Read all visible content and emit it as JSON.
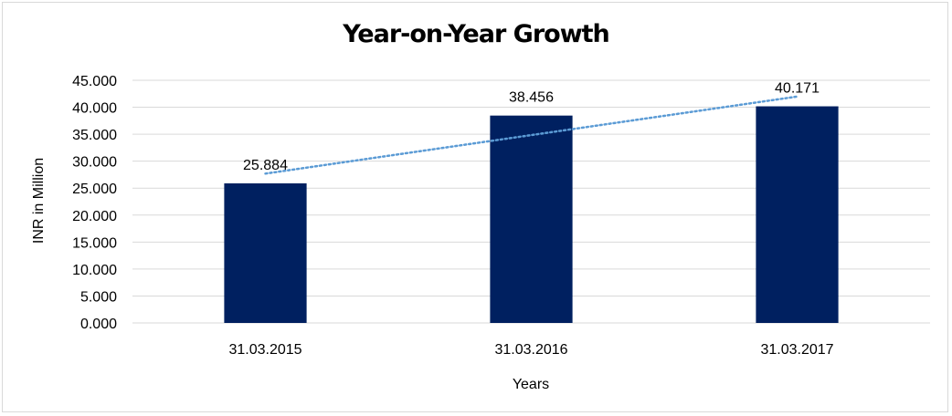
{
  "chart_data": {
    "type": "bar",
    "title": "Year-on-Year Growth",
    "xlabel": "Years",
    "ylabel": "INR in Million",
    "categories": [
      "31.03.2015",
      "31.03.2016",
      "31.03.2017"
    ],
    "values": [
      25.884,
      38.456,
      40.171
    ],
    "value_labels": [
      "25.884",
      "38.456",
      "40.171"
    ],
    "y_ticks": [
      "0.000",
      "5.000",
      "10.000",
      "15.000",
      "20.000",
      "25.000",
      "30.000",
      "35.000",
      "40.000",
      "45.000"
    ],
    "ylim": [
      0,
      45
    ],
    "grid": true,
    "legend": "none",
    "trendline": "linear, dotted",
    "colors": {
      "bar": "#002060",
      "trendline": "#5b9bd5",
      "grid": "#d9d9d9"
    }
  }
}
